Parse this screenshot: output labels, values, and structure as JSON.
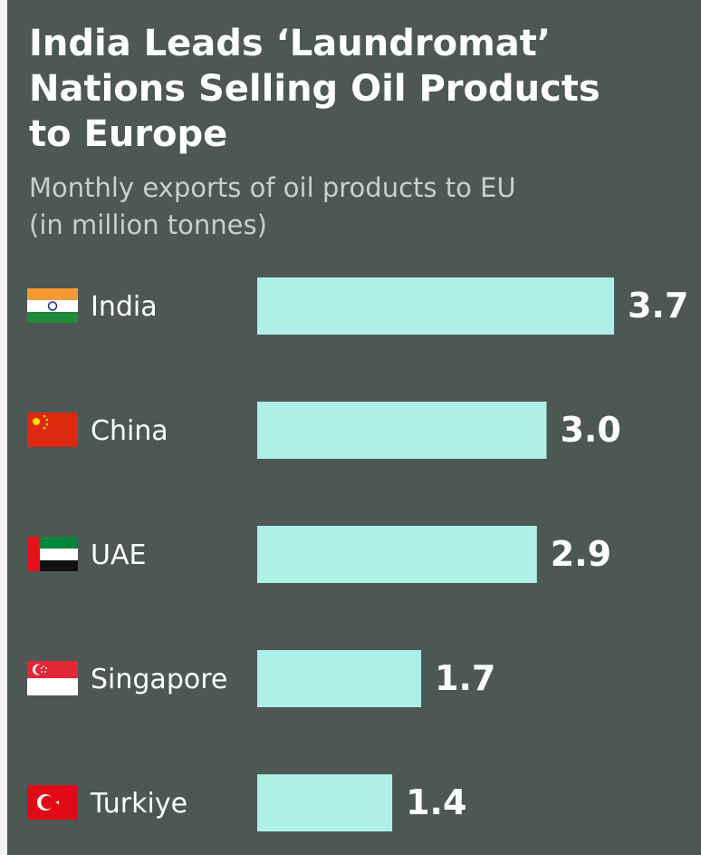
{
  "chart_data": {
    "type": "bar",
    "orientation": "horizontal",
    "title": "India Leads ‘Laundromat’ Nations Selling Oil Products to Europe",
    "subtitle": "Monthly exports of oil products to EU (in million tonnes)",
    "categories": [
      "India",
      "China",
      "UAE",
      "Singapore",
      "Turkiye"
    ],
    "values": [
      3.7,
      3.0,
      2.9,
      1.7,
      1.4
    ],
    "value_labels": [
      "3.7",
      "3.0",
      "2.9",
      "1.7",
      "1.4"
    ],
    "color": "#aef0e6"
  }
}
